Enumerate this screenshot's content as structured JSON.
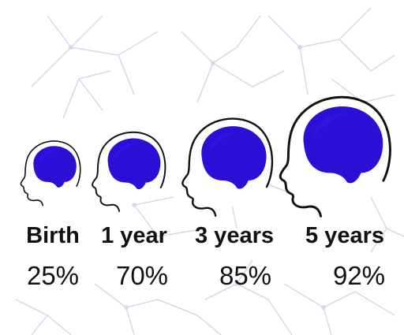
{
  "stages": [
    {
      "label": "Birth",
      "percent": "25%"
    },
    {
      "label": "1 year",
      "percent": "70%"
    },
    {
      "label": "3 years",
      "percent": "85%"
    },
    {
      "label": "5 years",
      "percent": "92%"
    }
  ],
  "colors": {
    "brain": "#2a10d4",
    "brain_light": "#3318ee",
    "outline": "#111111",
    "neuron": "#c9c2e0",
    "text": "#111111"
  },
  "icons": [
    "neuron-background",
    "child-head-icon",
    "brain-icon"
  ]
}
